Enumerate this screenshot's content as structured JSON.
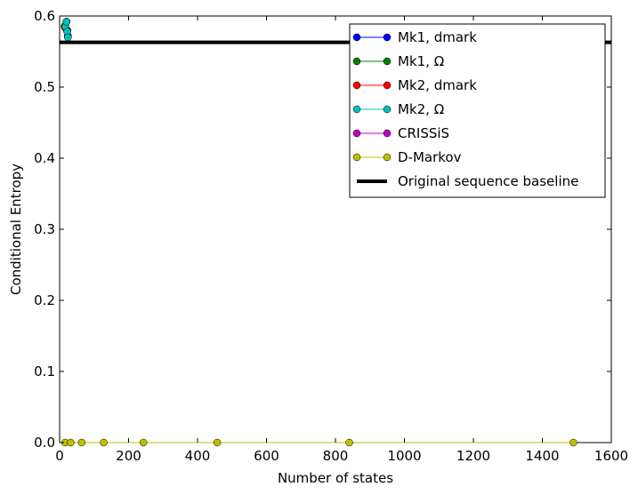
{
  "chart_data": {
    "type": "line",
    "title": "",
    "xlabel": "Number of states",
    "ylabel": "Conditional Entropy",
    "xlim": [
      0,
      1600
    ],
    "ylim": [
      0.0,
      0.6
    ],
    "xticks": [
      "0",
      "200",
      "400",
      "600",
      "800",
      "1000",
      "1200",
      "1400",
      "1600"
    ],
    "yticks": [
      "0.0",
      "0.1",
      "0.2",
      "0.3",
      "0.4",
      "0.5",
      "0.6"
    ],
    "grid": false,
    "legend_position": "upper-right",
    "series": [
      {
        "name": "Mk1, dmark",
        "color": "#0000ff",
        "marker": "circle",
        "x": [
          15,
          20,
          22,
          24
        ],
        "y": [
          0.586,
          0.592,
          0.58,
          0.572
        ]
      },
      {
        "name": "Mk1, Ω",
        "color": "#008000",
        "marker": "circle",
        "x": [
          15,
          20,
          22,
          24
        ],
        "y": [
          0.586,
          0.592,
          0.58,
          0.572
        ]
      },
      {
        "name": "Mk2, dmark",
        "color": "#ff0000",
        "marker": "circle",
        "x": [
          15,
          20,
          22,
          24
        ],
        "y": [
          0.584,
          0.592,
          0.579,
          0.571
        ]
      },
      {
        "name": "Mk2, Ω",
        "color": "#00bfbf",
        "marker": "circle",
        "x": [
          17,
          20,
          22,
          24
        ],
        "y": [
          0.585,
          0.592,
          0.578,
          0.57
        ]
      },
      {
        "name": "CRISSiS",
        "color": "#bf00bf",
        "marker": "circle",
        "x": [],
        "y": []
      },
      {
        "name": "D-Markov",
        "color": "#bfbf00",
        "marker": "circle",
        "x": [
          16,
          32,
          64,
          128,
          243,
          457,
          840,
          1490
        ],
        "y": [
          0.0,
          0.0,
          0.0,
          0.0,
          0.0,
          0.0,
          0.0,
          0.0
        ]
      },
      {
        "name": "Original sequence baseline",
        "color": "#000000",
        "marker": "none",
        "x": [
          0,
          1600
        ],
        "y": [
          0.563,
          0.563
        ]
      }
    ]
  }
}
